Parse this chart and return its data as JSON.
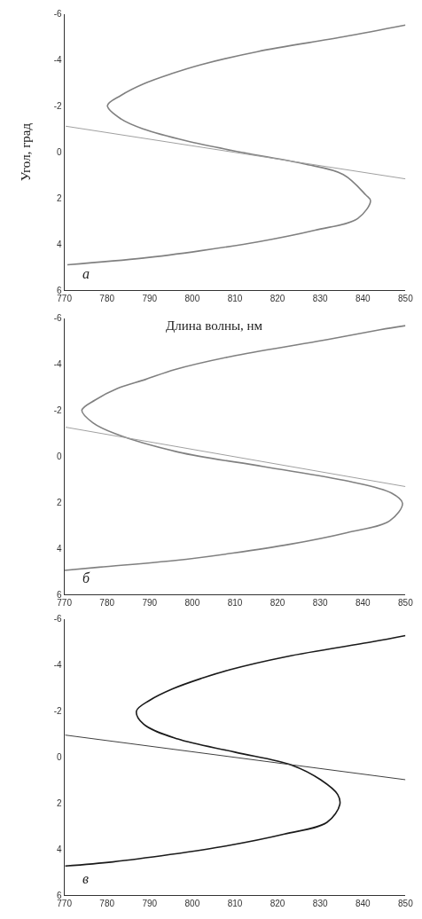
{
  "chart_data": [
    {
      "type": "line",
      "xlabel": "Длина волны, нм",
      "ylabel": "Угол, град",
      "annotations": [
        "а"
      ],
      "xlim": [
        770,
        850
      ],
      "ylim": [
        6,
        -6
      ],
      "xticks": [
        770,
        780,
        790,
        800,
        810,
        820,
        830,
        840,
        850
      ],
      "yticks": [
        -6,
        -4,
        -2,
        0,
        2,
        4,
        6
      ],
      "grid": false,
      "series": [
        {
          "color": "#808080",
          "x": [
            850,
            835.4,
            815.3,
            802,
            795.3,
            788.6,
            783.3,
            780.1,
            783.3,
            788.6,
            798.6,
            812,
            826,
            835.4,
            840.7,
            841.8,
            838.8,
            828.8,
            815.3,
            802,
            788.6,
            770.7
          ],
          "values": [
            -5.52,
            -5.01,
            -4.37,
            -3.8,
            -3.42,
            -2.97,
            -2.47,
            -2.02,
            -1.44,
            -1.0,
            -0.49,
            0.02,
            0.5,
            0.97,
            1.86,
            2.11,
            2.88,
            3.39,
            3.9,
            4.28,
            4.6,
            4.89
          ]
        },
        {
          "color": "#a0a0a0",
          "x": [
            770.3,
            850
          ],
          "values": [
            -1.13,
            1.16
          ]
        }
      ]
    },
    {
      "type": "line",
      "annotations": [
        "б"
      ],
      "xlim": [
        770,
        850
      ],
      "ylim": [
        6,
        -6
      ],
      "xticks": [
        770,
        780,
        790,
        800,
        810,
        820,
        830,
        840,
        850
      ],
      "yticks": [
        -6,
        -4,
        -2,
        0,
        2,
        4,
        6
      ],
      "grid": false,
      "series": [
        {
          "color": "#808080",
          "x": [
            850,
            844,
            829.3,
            809.2,
            796,
            789.1,
            782.4,
            777.2,
            774.1,
            776.7,
            782,
            796.7,
            816.7,
            836.7,
            846.7,
            849.3,
            846.3,
            836.3,
            822.8,
            809.5,
            796.1,
            778.2,
            770
          ],
          "values": [
            -5.68,
            -5.5,
            -5.0,
            -4.35,
            -3.78,
            -3.35,
            -2.95,
            -2.45,
            -2.0,
            -1.46,
            -0.98,
            -0.19,
            0.44,
            1.08,
            1.59,
            2.03,
            2.8,
            3.31,
            3.82,
            4.2,
            4.52,
            4.81,
            4.95
          ]
        },
        {
          "color": "#a0a0a0",
          "x": [
            770.3,
            850
          ],
          "values": [
            -1.27,
            1.31
          ]
        }
      ]
    },
    {
      "type": "line",
      "annotations": [
        "в"
      ],
      "xlim": [
        770,
        850
      ],
      "ylim": [
        6,
        -6
      ],
      "xticks": [
        770,
        780,
        790,
        800,
        810,
        820,
        830,
        840,
        850
      ],
      "yticks": [
        -6,
        -4,
        -2,
        0,
        2,
        4,
        6
      ],
      "grid": false,
      "series": [
        {
          "color": "#1a1a1a",
          "x": [
            850,
            842.2,
            822.1,
            808.8,
            802.1,
            795.4,
            790,
            786.9,
            788.6,
            796.6,
            810,
            823.4,
            830.1,
            834.1,
            834.6,
            831.6,
            821.6,
            808.1,
            794.8,
            781.4,
            770.2
          ],
          "values": [
            -5.28,
            -5.01,
            -4.37,
            -3.8,
            -3.42,
            -2.97,
            -2.47,
            -2.0,
            -1.43,
            -0.79,
            -0.22,
            0.35,
            0.98,
            1.62,
            2.06,
            2.83,
            3.34,
            3.85,
            4.23,
            4.55,
            4.73
          ]
        },
        {
          "color": "#404040",
          "x": [
            770.2,
            850
          ],
          "values": [
            -0.96,
            0.98
          ]
        }
      ]
    }
  ]
}
